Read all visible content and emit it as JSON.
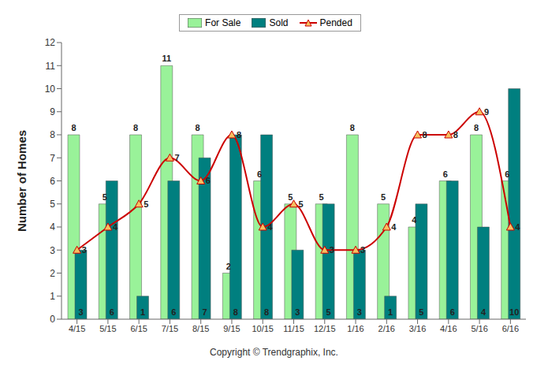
{
  "chart_data": {
    "type": "bar",
    "y_label": "Number of Homes",
    "annotations": [
      "Copyright © Trendgraphix, Inc."
    ],
    "categories": [
      "4/15",
      "5/15",
      "6/15",
      "7/15",
      "8/15",
      "9/15",
      "10/15",
      "11/15",
      "12/15",
      "1/16",
      "2/16",
      "3/16",
      "4/16",
      "5/16",
      "6/16"
    ],
    "series": [
      {
        "name": "For Sale",
        "type": "bar",
        "color": "#99f299",
        "values": [
          8,
          5,
          8,
          11,
          8,
          2,
          6,
          5,
          5,
          8,
          5,
          4,
          6,
          8,
          6
        ]
      },
      {
        "name": "Sold",
        "type": "bar",
        "color": "#007f7f",
        "values": [
          3,
          6,
          1,
          6,
          7,
          8,
          8,
          3,
          5,
          3,
          1,
          5,
          6,
          4,
          10
        ]
      },
      {
        "name": "Pended",
        "type": "line",
        "color": "#cc0000",
        "marker": "triangle",
        "line_style": "solid",
        "values": [
          3,
          4,
          5,
          7,
          6,
          8,
          4,
          5,
          3,
          3,
          4,
          8,
          8,
          9,
          4
        ]
      }
    ],
    "ylim": [
      0,
      12
    ],
    "yticks": [
      0,
      1,
      2,
      3,
      4,
      5,
      6,
      7,
      8,
      9,
      10,
      11,
      12
    ],
    "grid": false,
    "legend": "top",
    "data_labels": true
  }
}
